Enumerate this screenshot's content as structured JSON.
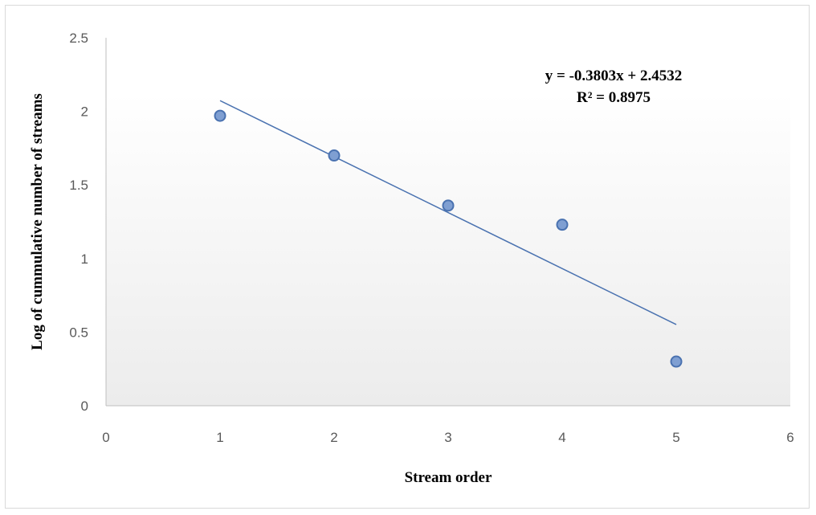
{
  "chart_data": {
    "type": "scatter",
    "x": [
      1,
      2,
      3,
      4,
      5
    ],
    "y": [
      1.97,
      1.7,
      1.36,
      1.23,
      0.3
    ],
    "xlabel": "Stream order",
    "ylabel": "Log of cummulative number of streams",
    "xlim": [
      0,
      6
    ],
    "ylim": [
      0,
      2.5
    ],
    "xticks": [
      "0",
      "1",
      "2",
      "3",
      "4",
      "5",
      "6"
    ],
    "yticks": [
      "0",
      "0.5",
      "1",
      "1.5",
      "2",
      "2.5"
    ],
    "grid": false,
    "legend": "none",
    "trendline": {
      "slope": -0.3803,
      "intercept": 2.4532,
      "x_range": [
        1,
        5
      ],
      "equation": "y = -0.3803x + 2.4532",
      "r_squared": "R² = 0.8975"
    },
    "colors": {
      "marker_fill": "#7f9fd2",
      "marker_stroke": "#4a72b0",
      "trendline": "#4a72b0",
      "axis": "#bfbfbf",
      "plot_gradient_top": "#ffffff",
      "plot_gradient_bottom": "#ececec"
    }
  }
}
